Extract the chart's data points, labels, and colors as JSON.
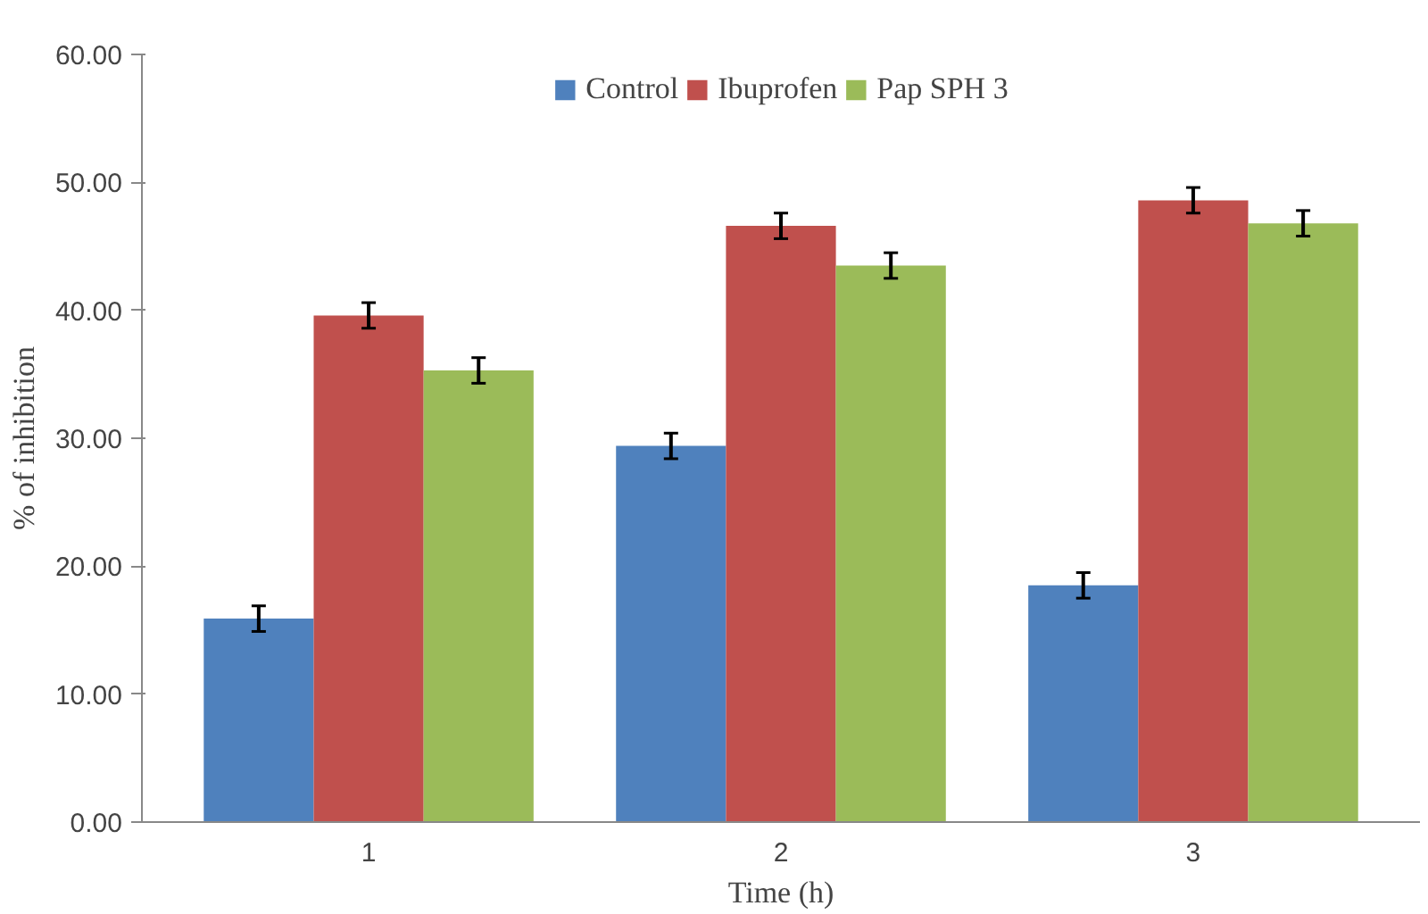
{
  "chart_data": {
    "type": "bar",
    "xlabel": "Time (h)",
    "ylabel": "% of inhibition",
    "categories": [
      "1",
      "2",
      "3"
    ],
    "series": [
      {
        "name": "Control",
        "color": "#4f81bd",
        "values": [
          15.9,
          29.4,
          18.5
        ],
        "errors": [
          1,
          1,
          1
        ]
      },
      {
        "name": "Ibuprofen",
        "color": "#c0504d",
        "values": [
          39.6,
          46.6,
          48.6
        ],
        "errors": [
          1,
          1,
          1
        ]
      },
      {
        "name": "Pap SPH 3",
        "color": "#9bbb59",
        "values": [
          35.3,
          43.5,
          46.8
        ],
        "errors": [
          1,
          1,
          1
        ]
      }
    ],
    "ylim": [
      0,
      60
    ],
    "yticks": [
      {
        "value": 0,
        "label": "0.00"
      },
      {
        "value": 10,
        "label": "10.00"
      },
      {
        "value": 20,
        "label": "20.00"
      },
      {
        "value": 30,
        "label": "30.00"
      },
      {
        "value": 40,
        "label": "40.00"
      },
      {
        "value": 50,
        "label": "50.00"
      },
      {
        "value": 60,
        "label": "60.00"
      }
    ],
    "grid": false,
    "legend": "top"
  }
}
